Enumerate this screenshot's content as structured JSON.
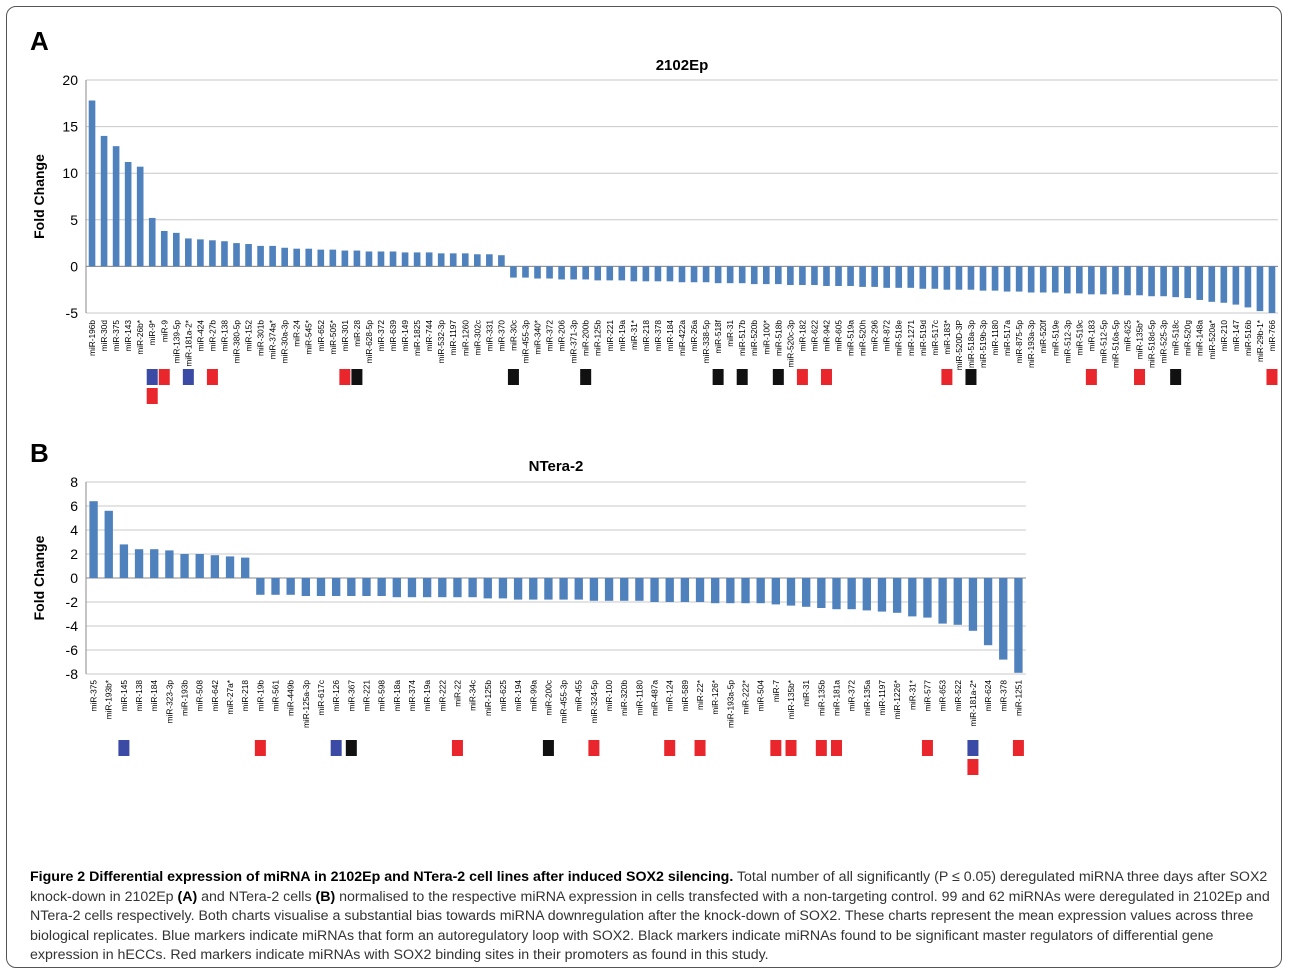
{
  "panels": {
    "a_letter": "A",
    "b_letter": "B"
  },
  "chart_data": [
    {
      "type": "bar",
      "title": "2102Ep",
      "xlabel": "",
      "ylabel": "Fold Change",
      "ylim": [
        -5,
        20
      ],
      "yticks": [
        20,
        15,
        10,
        5,
        0,
        -5
      ],
      "grid": true,
      "color": "#4f81bd",
      "categories": [
        "miR-196b",
        "miR-30d",
        "miR-375",
        "miR-143",
        "miR-26b*",
        "miR-9*",
        "miR-9",
        "miR-139-5p",
        "miR-181a-2*",
        "miR-424",
        "miR-27b",
        "miR-138",
        "miR-380-5p",
        "miR-152",
        "miR-301b",
        "miR-374a*",
        "miR-30a-3p",
        "miR-24",
        "miR-545*",
        "miR-652",
        "miR-505*",
        "miR-301",
        "miR-28",
        "miR-628-5p",
        "miR-372",
        "miR-639",
        "miR-149",
        "miR-1825",
        "miR-744",
        "miR-532-3p",
        "miR-1197",
        "miR-1260",
        "miR-302c",
        "miR-331",
        "miR-370",
        "miR-30c",
        "miR-455-3p",
        "miR-340*",
        "miR-372",
        "miR-206",
        "miR-371-3p",
        "miR-200b",
        "miR-125b",
        "miR-221",
        "miR-19a",
        "miR-31*",
        "miR-218",
        "miR-378",
        "miR-184",
        "miR-422a",
        "miR-26a",
        "miR-338-5p",
        "miR-518f",
        "miR-31",
        "miR-517b",
        "miR-520b",
        "miR-100*",
        "miR-518b",
        "miR-520c-3p",
        "miR-182",
        "miR-622",
        "miR-942",
        "miR-605",
        "miR-519a",
        "miR-520h",
        "miR-296",
        "miR-872",
        "miR-518e",
        "miR-1271",
        "miR-519d",
        "miR-517c",
        "miR-183*",
        "miR-520D-3P",
        "miR-518a-3p",
        "miR-519b-3p",
        "miR-1180",
        "miR-517a",
        "miR-875-5p",
        "miR-193a-3p",
        "miR-520f",
        "miR-519e",
        "miR-512-3p",
        "miR-519c",
        "miR-183",
        "miR-512-5p",
        "miR-516a-5p",
        "miR-625",
        "miR-135b*",
        "miR-518d-5p",
        "miR-525-3p",
        "miR-518c",
        "miR-520g",
        "miR-148a",
        "miR-520a*",
        "miR-210",
        "miR-147",
        "miR-516b",
        "miR-29b-1*",
        "miR-766"
      ],
      "values": [
        17.8,
        14.0,
        12.9,
        11.2,
        10.7,
        5.2,
        3.8,
        3.6,
        3.0,
        2.9,
        2.8,
        2.7,
        2.5,
        2.4,
        2.2,
        2.2,
        2.0,
        1.9,
        1.9,
        1.8,
        1.8,
        1.7,
        1.7,
        1.6,
        1.6,
        1.6,
        1.5,
        1.5,
        1.5,
        1.4,
        1.4,
        1.4,
        1.3,
        1.3,
        1.2,
        -1.2,
        -1.2,
        -1.3,
        -1.3,
        -1.4,
        -1.4,
        -1.4,
        -1.5,
        -1.5,
        -1.5,
        -1.6,
        -1.6,
        -1.6,
        -1.6,
        -1.7,
        -1.7,
        -1.7,
        -1.8,
        -1.8,
        -1.8,
        -1.9,
        -1.9,
        -1.9,
        -2.0,
        -2.0,
        -2.0,
        -2.1,
        -2.1,
        -2.1,
        -2.2,
        -2.2,
        -2.3,
        -2.3,
        -2.3,
        -2.4,
        -2.4,
        -2.5,
        -2.5,
        -2.5,
        -2.6,
        -2.6,
        -2.7,
        -2.7,
        -2.8,
        -2.8,
        -2.8,
        -2.9,
        -2.9,
        -3.0,
        -3.0,
        -3.0,
        -3.1,
        -3.1,
        -3.2,
        -3.2,
        -3.3,
        -3.4,
        -3.6,
        -3.8,
        -3.9,
        -4.1,
        -4.4,
        -4.8,
        -5.0
      ],
      "markers": [
        {
          "index": 5,
          "colors": [
            "blue",
            "red"
          ]
        },
        {
          "index": 6,
          "colors": [
            "red"
          ]
        },
        {
          "index": 8,
          "colors": [
            "blue"
          ]
        },
        {
          "index": 10,
          "colors": [
            "red"
          ]
        },
        {
          "index": 21,
          "colors": [
            "red"
          ]
        },
        {
          "index": 22,
          "colors": [
            "black"
          ]
        },
        {
          "index": 35,
          "colors": [
            "black"
          ]
        },
        {
          "index": 41,
          "colors": [
            "black"
          ]
        },
        {
          "index": 52,
          "colors": [
            "black"
          ]
        },
        {
          "index": 54,
          "colors": [
            "black"
          ]
        },
        {
          "index": 57,
          "colors": [
            "black"
          ]
        },
        {
          "index": 59,
          "colors": [
            "red"
          ]
        },
        {
          "index": 61,
          "colors": [
            "red"
          ]
        },
        {
          "index": 71,
          "colors": [
            "red"
          ]
        },
        {
          "index": 73,
          "colors": [
            "black"
          ]
        },
        {
          "index": 83,
          "colors": [
            "red"
          ]
        },
        {
          "index": 87,
          "colors": [
            "red"
          ]
        },
        {
          "index": 90,
          "colors": [
            "black"
          ]
        },
        {
          "index": 98,
          "colors": [
            "red"
          ]
        }
      ]
    },
    {
      "type": "bar",
      "title": "NTera-2",
      "xlabel": "",
      "ylabel": "Fold Change",
      "ylim": [
        -8,
        8
      ],
      "yticks": [
        8,
        6,
        4,
        2,
        0,
        -2,
        -4,
        -6,
        -8
      ],
      "grid": true,
      "color": "#4f81bd",
      "categories": [
        "miR-375",
        "miR-193b*",
        "miR-145",
        "miR-138",
        "miR-184",
        "miR-323-3p",
        "miR-193b",
        "miR-508",
        "miR-642",
        "miR-27a*",
        "miR-218",
        "miR-19b",
        "miR-561",
        "miR-449b",
        "miR-125a-3p",
        "miR-617c",
        "miR-126",
        "miR-367",
        "miR-221",
        "miR-598",
        "miR-18a",
        "miR-374",
        "miR-19a",
        "miR-222",
        "miR-22",
        "miR-34c",
        "miR-125b",
        "miR-625",
        "miR-194",
        "miR-99a",
        "miR-200c",
        "miR-455-3p",
        "miR-455",
        "miR-324-5p",
        "miR-100",
        "miR-320b",
        "miR-1180",
        "miR-487a",
        "miR-124",
        "miR-589",
        "miR-22*",
        "miR-126*",
        "miR-193a-5p",
        "miR-222*",
        "miR-504",
        "miR-7",
        "miR-135b*",
        "miR-31",
        "miR-135b",
        "miR-181a",
        "miR-372",
        "miR-135a",
        "miR-1197",
        "miR-1226*",
        "miR-31*",
        "miR-577",
        "miR-653",
        "miR-522",
        "miR-181a-2*",
        "miR-624",
        "miR-378",
        "miR-1251"
      ],
      "values": [
        6.4,
        5.6,
        2.8,
        2.4,
        2.4,
        2.3,
        2.0,
        2.0,
        1.9,
        1.8,
        1.7,
        -1.4,
        -1.4,
        -1.4,
        -1.5,
        -1.5,
        -1.5,
        -1.5,
        -1.5,
        -1.5,
        -1.6,
        -1.6,
        -1.6,
        -1.6,
        -1.6,
        -1.6,
        -1.7,
        -1.7,
        -1.8,
        -1.8,
        -1.8,
        -1.8,
        -1.8,
        -1.9,
        -1.9,
        -1.9,
        -1.9,
        -2.0,
        -2.0,
        -2.0,
        -2.0,
        -2.1,
        -2.1,
        -2.1,
        -2.1,
        -2.2,
        -2.3,
        -2.4,
        -2.5,
        -2.6,
        -2.6,
        -2.7,
        -2.8,
        -2.9,
        -3.2,
        -3.3,
        -3.8,
        -3.9,
        -4.4,
        -5.6,
        -6.8,
        -7.9
      ],
      "markers": [
        {
          "index": 2,
          "colors": [
            "blue"
          ]
        },
        {
          "index": 11,
          "colors": [
            "red"
          ]
        },
        {
          "index": 16,
          "colors": [
            "blue"
          ]
        },
        {
          "index": 17,
          "colors": [
            "black"
          ]
        },
        {
          "index": 24,
          "colors": [
            "red"
          ]
        },
        {
          "index": 30,
          "colors": [
            "black"
          ]
        },
        {
          "index": 33,
          "colors": [
            "red"
          ]
        },
        {
          "index": 38,
          "colors": [
            "red"
          ]
        },
        {
          "index": 40,
          "colors": [
            "red"
          ]
        },
        {
          "index": 45,
          "colors": [
            "red"
          ]
        },
        {
          "index": 46,
          "colors": [
            "red"
          ]
        },
        {
          "index": 48,
          "colors": [
            "red"
          ]
        },
        {
          "index": 49,
          "colors": [
            "red"
          ]
        },
        {
          "index": 55,
          "colors": [
            "red"
          ]
        },
        {
          "index": 58,
          "colors": [
            "blue",
            "red"
          ]
        },
        {
          "index": 61,
          "colors": [
            "red"
          ]
        }
      ]
    }
  ],
  "marker_colors": {
    "blue": "#3b4aa5",
    "red": "#e8262b",
    "black": "#111111"
  },
  "caption": {
    "title": "Figure 2 Differential expression of miRNA in 2102Ep and NTera-2 cell lines after induced SOX2 silencing.",
    "text_1": " Total number of all significantly (P ≤ 0.05) deregulated miRNA three days after SOX2 knock-down in 2102Ep ",
    "ref_a": "(A)",
    "text_2": " and NTera-2 cells ",
    "ref_b": "(B)",
    "text_3": " normalised to the respective miRNA expression in cells transfected with a non-targeting control. 99 and 62 miRNAs were deregulated in 2102Ep and NTera-2 cells respectively. Both charts visualise a substantial bias towards miRNA downregulation after the knock-down of SOX2. These charts represent the mean expression values across three biological replicates. Blue markers indicate miRNAs that form an autoregulatory loop with SOX2. Black markers indicate miRNAs found to be significant master regulators of differential gene expression in hECCs. Red markers indicate miRNAs with SOX2 binding sites in their promoters as found in this study."
  }
}
